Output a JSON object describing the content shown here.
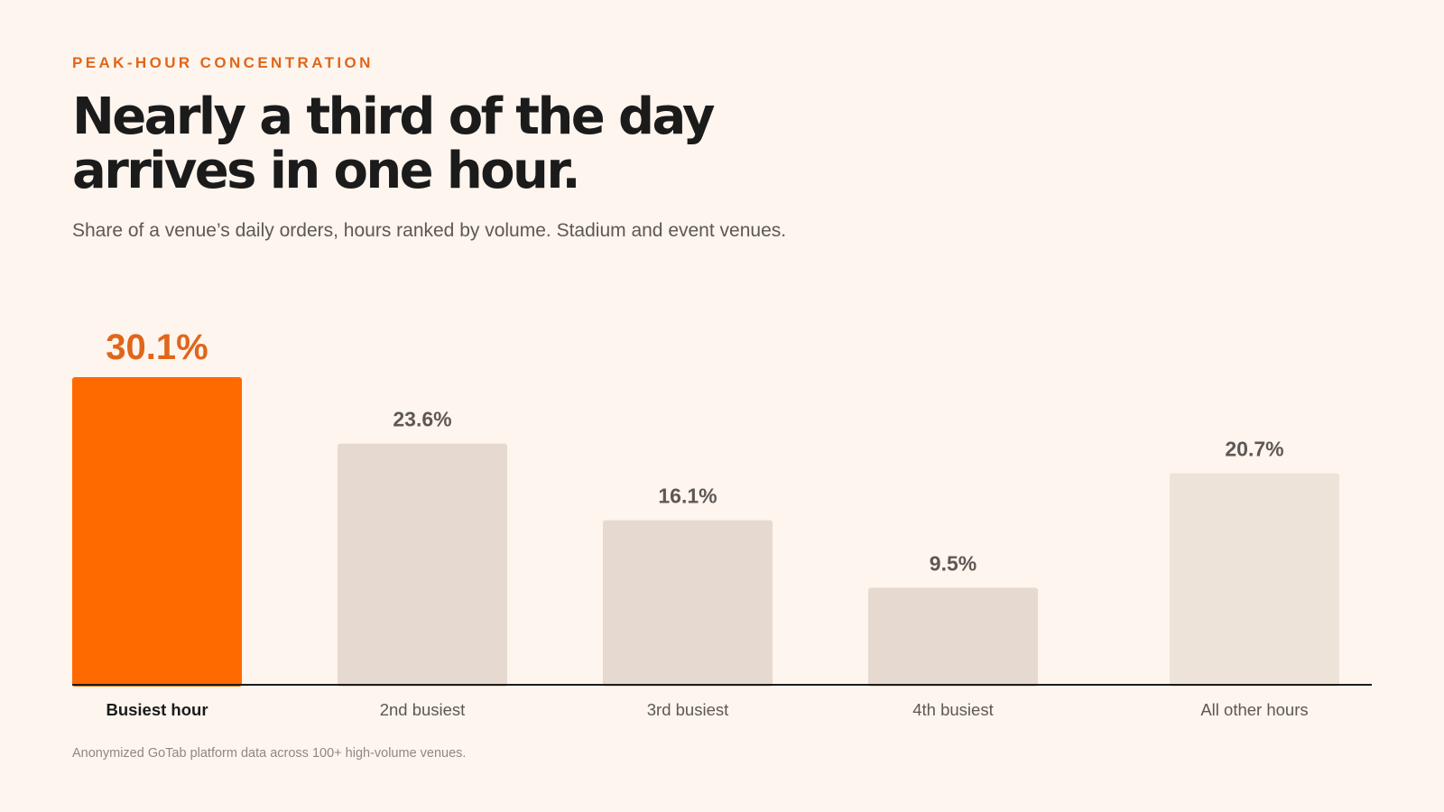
{
  "header": {
    "eyebrow": "PEAK-HOUR CONCENTRATION",
    "title_line1": "Nearly a third of the day",
    "title_line2": "arrives in one hour.",
    "subtitle": "Share of a venue’s daily orders, hours ranked by volume. Stadium and event venues."
  },
  "footer": {
    "note": "Anonymized GoTab platform data across 100+ high-volume venues."
  },
  "colors": {
    "background": "#fdf5ee",
    "accent": "#ff6a00",
    "accent_label": "#e0661a",
    "bar_muted": "#e6dad0",
    "bar_other": "#eee3d8",
    "value_label": "#5d5855",
    "axis_line": "#1b1b1b"
  },
  "chart_data": {
    "type": "bar",
    "categories": [
      "Busiest hour",
      "2nd busiest",
      "3rd busiest",
      "4th busiest",
      "All other hours"
    ],
    "values": [
      30.1,
      23.6,
      16.1,
      9.5,
      20.7
    ],
    "value_labels": [
      "30.1%",
      "23.6%",
      "16.1%",
      "9.5%",
      "20.7%"
    ],
    "highlight_index": 0,
    "ylim": [
      0,
      30.1
    ],
    "grid": false,
    "legend": "none"
  }
}
